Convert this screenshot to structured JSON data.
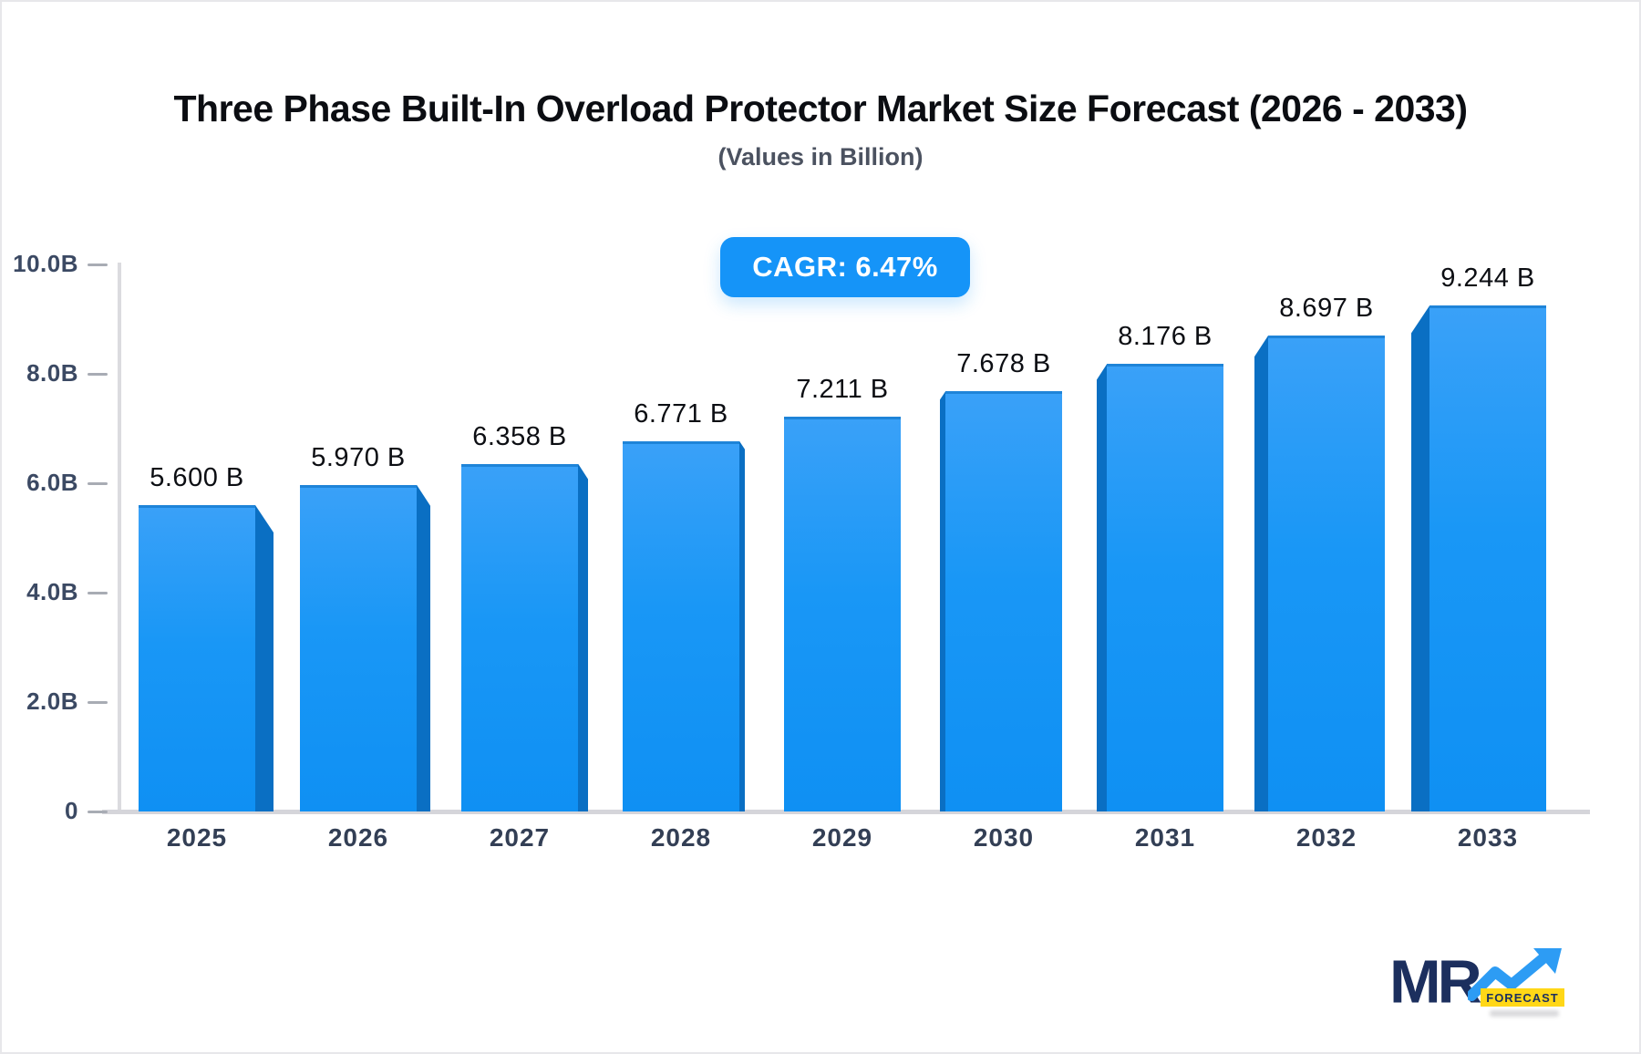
{
  "header": {
    "title": "Three Phase Built-In Overload Protector Market Size Forecast (2026 - 2033)",
    "subtitle": "(Values in Billion)"
  },
  "cagr_badge": {
    "label": "CAGR: 6.47%"
  },
  "colors": {
    "accent_blue": "#1594f8",
    "bar_front_top": "#3aa1f8",
    "bar_front_bottom": "#0f90f3",
    "bar_side": "#0a6fc3",
    "axis_gray": "#d5d5da",
    "tick_text": "#3b4963",
    "logo_navy": "#1c2f5e",
    "logo_yellow": "#ffd717"
  },
  "chart_data": {
    "type": "bar",
    "title": "Three Phase Built-In Overload Protector Market Size Forecast (2026 - 2033)",
    "subtitle": "(Values in Billion)",
    "categories": [
      "2025",
      "2026",
      "2027",
      "2028",
      "2029",
      "2030",
      "2031",
      "2032",
      "2033"
    ],
    "values": [
      5.6,
      5.97,
      6.358,
      6.771,
      7.211,
      7.678,
      8.176,
      8.697,
      9.244
    ],
    "bar_labels": [
      "5.600 B",
      "5.970 B",
      "6.358 B",
      "6.771 B",
      "7.211 B",
      "7.678 B",
      "8.176 B",
      "8.697 B",
      "9.244 B"
    ],
    "unit": "Billion",
    "xlabel": "",
    "ylabel": "",
    "ylim": [
      0,
      10
    ],
    "y_ticks": [
      {
        "value": 10,
        "label": "10.0B"
      },
      {
        "value": 8,
        "label": "8.0B"
      },
      {
        "value": 6,
        "label": "6.0B"
      },
      {
        "value": 4,
        "label": "4.0B"
      },
      {
        "value": 2,
        "label": "2.0B"
      },
      {
        "value": 0,
        "label": "0"
      }
    ],
    "grid": false,
    "legend": false,
    "style": "3d-extruded-bars, perspective toward center bar"
  },
  "logo": {
    "text": "MR",
    "badge": "FORECAST"
  }
}
